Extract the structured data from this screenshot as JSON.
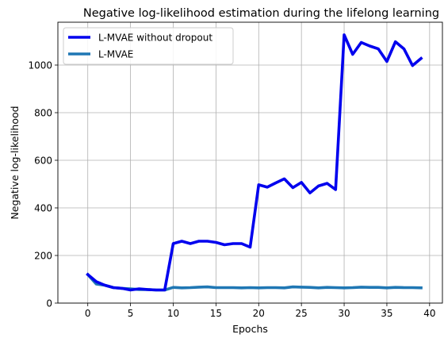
{
  "chart_data": {
    "type": "line",
    "title": "Negative log-likelihood estimation during the lifelong learning",
    "xlabel": "Epochs",
    "ylabel": "Negative log-likelihood",
    "xlim": [
      -3.5,
      41.5
    ],
    "ylim": [
      0,
      1180
    ],
    "xticks": [
      0,
      5,
      10,
      15,
      20,
      25,
      30,
      35,
      40
    ],
    "yticks": [
      0,
      200,
      400,
      600,
      800,
      1000
    ],
    "grid": true,
    "legend_position": "upper-left",
    "x": [
      0,
      1,
      2,
      3,
      4,
      5,
      6,
      7,
      8,
      9,
      10,
      11,
      12,
      13,
      14,
      15,
      16,
      17,
      18,
      19,
      20,
      21,
      22,
      23,
      24,
      25,
      26,
      27,
      28,
      29,
      30,
      31,
      32,
      33,
      34,
      35,
      36,
      37,
      38,
      39
    ],
    "series": [
      {
        "name": "L-MVAE without dropout",
        "color": "#0000ee",
        "values": [
          120,
          90,
          75,
          65,
          62,
          55,
          60,
          57,
          55,
          55,
          250,
          260,
          250,
          260,
          260,
          255,
          245,
          250,
          250,
          235,
          497,
          487,
          505,
          522,
          485,
          507,
          463,
          492,
          503,
          477,
          1127,
          1045,
          1095,
          1080,
          1068,
          1015,
          1098,
          1068,
          998,
          1028
        ]
      },
      {
        "name": "L-MVAE",
        "color": "#1f77b4",
        "values": [
          120,
          80,
          75,
          65,
          62,
          60,
          57,
          57,
          55,
          55,
          66,
          64,
          65,
          67,
          68,
          65,
          65,
          65,
          64,
          65,
          64,
          65,
          65,
          64,
          68,
          67,
          66,
          64,
          66,
          65,
          64,
          65,
          67,
          66,
          66,
          64,
          66,
          65,
          65,
          64
        ]
      }
    ]
  }
}
